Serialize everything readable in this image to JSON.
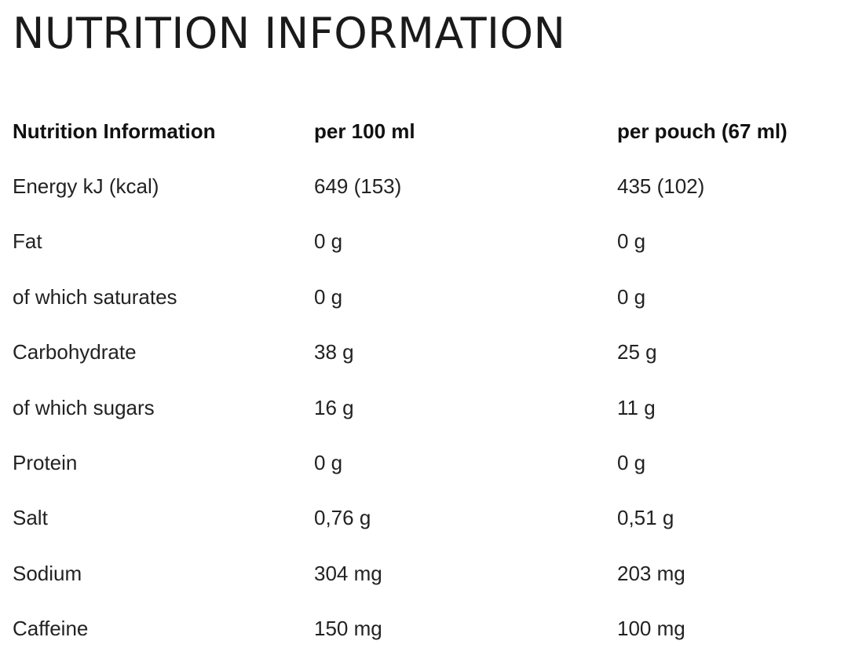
{
  "title": "NUTRITION INFORMATION",
  "table": {
    "headers": [
      "Nutrition Information",
      "per 100 ml",
      "per pouch (67 ml)"
    ],
    "rows": [
      [
        "Energy kJ (kcal)",
        "649 (153)",
        "435 (102)"
      ],
      [
        "Fat",
        "0 g",
        "0 g"
      ],
      [
        "of which saturates",
        "0 g",
        "0 g"
      ],
      [
        "Carbohydrate",
        "38 g",
        "25 g"
      ],
      [
        "of which sugars",
        "16 g",
        "11 g"
      ],
      [
        "Protein",
        "0 g",
        "0 g"
      ],
      [
        "Salt",
        "0,76 g",
        "0,51 g"
      ],
      [
        "Sodium",
        "304 mg",
        "203 mg"
      ],
      [
        "Caffeine",
        "150 mg",
        "100 mg"
      ]
    ]
  }
}
